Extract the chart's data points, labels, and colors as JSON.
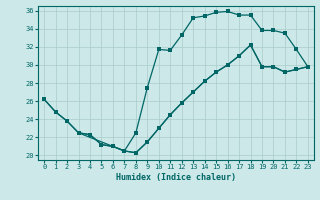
{
  "xlabel": "Humidex (Indice chaleur)",
  "xlim": [
    -0.5,
    23.5
  ],
  "ylim": [
    19.5,
    36.5
  ],
  "xticks": [
    0,
    1,
    2,
    3,
    4,
    5,
    6,
    7,
    8,
    9,
    10,
    11,
    12,
    13,
    14,
    15,
    16,
    17,
    18,
    19,
    20,
    21,
    22,
    23
  ],
  "yticks": [
    20,
    22,
    24,
    26,
    28,
    30,
    32,
    34,
    36
  ],
  "background_color": "#cce8e8",
  "grid_color": "#aacccc",
  "line_color": "#006666",
  "curve1_x": [
    0,
    1,
    2,
    3,
    4,
    5,
    6,
    7,
    8,
    9,
    10,
    11,
    12,
    13,
    14,
    15,
    16,
    17,
    18,
    19,
    20,
    21,
    22,
    23
  ],
  "curve1_y": [
    26.2,
    24.8,
    23.8,
    22.5,
    22.3,
    21.2,
    21.0,
    20.5,
    22.5,
    27.5,
    31.7,
    31.6,
    33.3,
    35.2,
    35.4,
    35.8,
    35.9,
    35.5,
    35.5,
    33.8,
    33.8,
    33.5,
    31.7,
    29.8
  ],
  "curve2_x": [
    0,
    1,
    2,
    3,
    4,
    5,
    6,
    7,
    8,
    9,
    10,
    11,
    12,
    13,
    14,
    15,
    16,
    17,
    18,
    19,
    20,
    21,
    22,
    23
  ],
  "curve2_y": [
    26.2,
    24.8,
    23.8,
    22.5,
    22.3,
    21.2,
    21.0,
    20.5,
    20.3,
    21.5,
    23.0,
    24.5,
    25.8,
    27.0,
    28.2,
    29.2,
    30.0,
    31.0,
    32.2,
    29.8,
    29.8,
    29.2,
    29.5,
    29.8
  ],
  "curve3_x": [
    3,
    7,
    8,
    9,
    10,
    11,
    12,
    13,
    14,
    15,
    16,
    17,
    18,
    19,
    20,
    21,
    22,
    23
  ],
  "curve3_y": [
    22.5,
    20.5,
    20.3,
    21.5,
    23.0,
    24.5,
    25.8,
    27.0,
    28.2,
    29.2,
    30.0,
    31.0,
    32.2,
    29.8,
    29.8,
    29.2,
    29.5,
    29.8
  ]
}
